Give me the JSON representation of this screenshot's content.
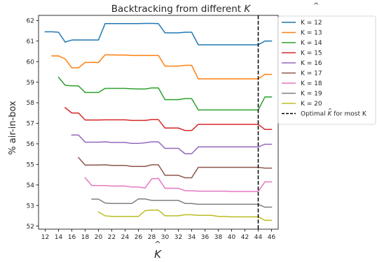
{
  "chart_data": {
    "type": "line",
    "title": "Backtracking from different K̂",
    "title_main": "Backtracking from different ",
    "title_var": "K",
    "xlabel": "K",
    "ylabel": "% air-in-box",
    "x_tick_labels": [
      12,
      14,
      16,
      18,
      20,
      22,
      24,
      26,
      28,
      30,
      32,
      34,
      36,
      38,
      40,
      42,
      44,
      46
    ],
    "y_tick_labels": [
      52,
      53,
      54,
      55,
      56,
      57,
      58,
      59,
      60,
      61,
      62
    ],
    "xlim": [
      11,
      47
    ],
    "ylim": [
      51.85,
      62.25
    ],
    "grid": false,
    "legend_placement": "outside-right",
    "series": [
      {
        "name": "K = 12",
        "color": "#1f77b4",
        "points": [
          [
            12,
            61.45
          ],
          [
            13,
            61.45
          ],
          [
            14,
            61.43
          ],
          [
            15,
            60.95
          ],
          [
            16,
            61.05
          ],
          [
            17,
            61.05
          ],
          [
            18,
            61.05
          ],
          [
            19,
            61.05
          ],
          [
            20,
            61.05
          ],
          [
            21,
            61.85
          ],
          [
            22,
            61.85
          ],
          [
            23,
            61.85
          ],
          [
            24,
            61.85
          ],
          [
            25,
            61.85
          ],
          [
            26,
            61.85
          ],
          [
            27,
            61.86
          ],
          [
            28,
            61.86
          ],
          [
            29,
            61.85
          ],
          [
            30,
            61.4
          ],
          [
            31,
            61.4
          ],
          [
            32,
            61.4
          ],
          [
            33,
            61.43
          ],
          [
            34,
            61.43
          ],
          [
            35,
            60.82
          ],
          [
            36,
            60.82
          ],
          [
            37,
            60.82
          ],
          [
            38,
            60.82
          ],
          [
            39,
            60.82
          ],
          [
            40,
            60.82
          ],
          [
            41,
            60.82
          ],
          [
            42,
            60.82
          ],
          [
            43,
            60.82
          ],
          [
            44,
            60.82
          ],
          [
            45,
            61.0
          ],
          [
            46,
            61.0
          ]
        ]
      },
      {
        "name": "K = 13",
        "color": "#ff7f0e",
        "points": [
          [
            13,
            60.28
          ],
          [
            14,
            60.28
          ],
          [
            15,
            60.13
          ],
          [
            16,
            59.7
          ],
          [
            17,
            59.7
          ],
          [
            18,
            59.96
          ],
          [
            19,
            59.96
          ],
          [
            20,
            59.96
          ],
          [
            21,
            60.33
          ],
          [
            22,
            60.33
          ],
          [
            23,
            60.32
          ],
          [
            24,
            60.32
          ],
          [
            25,
            60.3
          ],
          [
            26,
            60.3
          ],
          [
            27,
            60.3
          ],
          [
            28,
            60.3
          ],
          [
            29,
            60.3
          ],
          [
            30,
            59.78
          ],
          [
            31,
            59.78
          ],
          [
            32,
            59.78
          ],
          [
            33,
            59.82
          ],
          [
            34,
            59.82
          ],
          [
            35,
            59.16
          ],
          [
            36,
            59.16
          ],
          [
            37,
            59.16
          ],
          [
            38,
            59.16
          ],
          [
            39,
            59.16
          ],
          [
            40,
            59.16
          ],
          [
            41,
            59.16
          ],
          [
            42,
            59.16
          ],
          [
            43,
            59.16
          ],
          [
            44,
            59.16
          ],
          [
            45,
            59.38
          ],
          [
            46,
            59.38
          ]
        ]
      },
      {
        "name": "K = 14",
        "color": "#2ca02c",
        "points": [
          [
            14,
            59.24
          ],
          [
            15,
            58.85
          ],
          [
            16,
            58.82
          ],
          [
            17,
            58.82
          ],
          [
            18,
            58.5
          ],
          [
            19,
            58.5
          ],
          [
            20,
            58.5
          ],
          [
            21,
            58.7
          ],
          [
            22,
            58.7
          ],
          [
            23,
            58.7
          ],
          [
            24,
            58.7
          ],
          [
            25,
            58.68
          ],
          [
            26,
            58.67
          ],
          [
            27,
            58.67
          ],
          [
            28,
            58.72
          ],
          [
            29,
            58.72
          ],
          [
            30,
            58.15
          ],
          [
            31,
            58.15
          ],
          [
            32,
            58.15
          ],
          [
            33,
            58.2
          ],
          [
            34,
            58.2
          ],
          [
            35,
            57.65
          ],
          [
            36,
            57.65
          ],
          [
            37,
            57.65
          ],
          [
            38,
            57.65
          ],
          [
            39,
            57.65
          ],
          [
            40,
            57.65
          ],
          [
            41,
            57.65
          ],
          [
            42,
            57.65
          ],
          [
            43,
            57.65
          ],
          [
            44,
            57.65
          ],
          [
            45,
            58.28
          ],
          [
            46,
            58.28
          ]
        ]
      },
      {
        "name": "K = 15",
        "color": "#d62728",
        "points": [
          [
            15,
            57.76
          ],
          [
            16,
            57.5
          ],
          [
            17,
            57.5
          ],
          [
            18,
            57.16
          ],
          [
            19,
            57.16
          ],
          [
            20,
            57.16
          ],
          [
            21,
            57.17
          ],
          [
            22,
            57.17
          ],
          [
            23,
            57.17
          ],
          [
            24,
            57.17
          ],
          [
            25,
            57.14
          ],
          [
            26,
            57.14
          ],
          [
            27,
            57.14
          ],
          [
            28,
            57.18
          ],
          [
            29,
            57.18
          ],
          [
            30,
            56.77
          ],
          [
            31,
            56.77
          ],
          [
            32,
            56.77
          ],
          [
            33,
            56.65
          ],
          [
            34,
            56.65
          ],
          [
            35,
            56.95
          ],
          [
            36,
            56.95
          ],
          [
            37,
            56.95
          ],
          [
            38,
            56.95
          ],
          [
            39,
            56.95
          ],
          [
            40,
            56.95
          ],
          [
            41,
            56.95
          ],
          [
            42,
            56.95
          ],
          [
            43,
            56.95
          ],
          [
            44,
            56.95
          ],
          [
            45,
            56.7
          ],
          [
            46,
            56.7
          ]
        ]
      },
      {
        "name": "K = 16",
        "color": "#9467bd",
        "points": [
          [
            16,
            56.43
          ],
          [
            17,
            56.43
          ],
          [
            18,
            56.08
          ],
          [
            19,
            56.08
          ],
          [
            20,
            56.08
          ],
          [
            21,
            56.1
          ],
          [
            22,
            56.07
          ],
          [
            23,
            56.07
          ],
          [
            24,
            56.07
          ],
          [
            25,
            56.02
          ],
          [
            26,
            56.02
          ],
          [
            27,
            56.05
          ],
          [
            28,
            56.1
          ],
          [
            29,
            56.1
          ],
          [
            30,
            55.78
          ],
          [
            31,
            55.78
          ],
          [
            32,
            55.78
          ],
          [
            33,
            55.52
          ],
          [
            34,
            55.52
          ],
          [
            35,
            55.85
          ],
          [
            36,
            55.85
          ],
          [
            37,
            55.85
          ],
          [
            38,
            55.85
          ],
          [
            39,
            55.85
          ],
          [
            40,
            55.85
          ],
          [
            41,
            55.85
          ],
          [
            42,
            55.85
          ],
          [
            43,
            55.85
          ],
          [
            44,
            55.85
          ],
          [
            45,
            55.98
          ],
          [
            46,
            55.98
          ]
        ]
      },
      {
        "name": "K = 17",
        "color": "#8c564b",
        "points": [
          [
            17,
            55.33
          ],
          [
            18,
            54.97
          ],
          [
            19,
            54.97
          ],
          [
            20,
            54.97
          ],
          [
            21,
            54.98
          ],
          [
            22,
            54.95
          ],
          [
            23,
            54.95
          ],
          [
            24,
            54.95
          ],
          [
            25,
            54.9
          ],
          [
            26,
            54.9
          ],
          [
            27,
            54.9
          ],
          [
            28,
            54.98
          ],
          [
            29,
            54.98
          ],
          [
            30,
            54.47
          ],
          [
            31,
            54.47
          ],
          [
            32,
            54.47
          ],
          [
            33,
            54.35
          ],
          [
            34,
            54.35
          ],
          [
            35,
            54.86
          ],
          [
            36,
            54.86
          ],
          [
            37,
            54.86
          ],
          [
            38,
            54.86
          ],
          [
            39,
            54.86
          ],
          [
            40,
            54.86
          ],
          [
            41,
            54.86
          ],
          [
            42,
            54.86
          ],
          [
            43,
            54.86
          ],
          [
            44,
            54.86
          ],
          [
            45,
            54.82
          ],
          [
            46,
            54.82
          ]
        ]
      },
      {
        "name": "K = 18",
        "color": "#e377c2",
        "points": [
          [
            18,
            54.35
          ],
          [
            19,
            53.97
          ],
          [
            20,
            53.97
          ],
          [
            21,
            53.97
          ],
          [
            22,
            53.95
          ],
          [
            23,
            53.95
          ],
          [
            24,
            53.95
          ],
          [
            25,
            53.9
          ],
          [
            26,
            53.9
          ],
          [
            27,
            53.85
          ],
          [
            28,
            54.3
          ],
          [
            29,
            54.32
          ],
          [
            30,
            53.84
          ],
          [
            31,
            53.84
          ],
          [
            32,
            53.84
          ],
          [
            33,
            53.72
          ],
          [
            34,
            53.72
          ],
          [
            35,
            53.7
          ],
          [
            36,
            53.7
          ],
          [
            37,
            53.7
          ],
          [
            38,
            53.7
          ],
          [
            39,
            53.7
          ],
          [
            40,
            53.68
          ],
          [
            41,
            53.68
          ],
          [
            42,
            53.68
          ],
          [
            43,
            53.68
          ],
          [
            44,
            53.68
          ],
          [
            45,
            54.15
          ],
          [
            46,
            54.15
          ]
        ]
      },
      {
        "name": "K = 19",
        "color": "#7f7f7f",
        "points": [
          [
            19,
            53.31
          ],
          [
            20,
            53.31
          ],
          [
            21,
            53.12
          ],
          [
            22,
            53.1
          ],
          [
            23,
            53.1
          ],
          [
            24,
            53.1
          ],
          [
            25,
            53.1
          ],
          [
            26,
            53.32
          ],
          [
            27,
            53.32
          ],
          [
            28,
            53.25
          ],
          [
            29,
            53.25
          ],
          [
            30,
            53.25
          ],
          [
            31,
            53.25
          ],
          [
            32,
            53.25
          ],
          [
            33,
            53.1
          ],
          [
            34,
            53.1
          ],
          [
            35,
            53.06
          ],
          [
            36,
            53.06
          ],
          [
            37,
            53.06
          ],
          [
            38,
            53.06
          ],
          [
            39,
            53.06
          ],
          [
            40,
            53.06
          ],
          [
            41,
            53.06
          ],
          [
            42,
            53.06
          ],
          [
            43,
            53.06
          ],
          [
            44,
            53.06
          ],
          [
            45,
            52.92
          ],
          [
            46,
            52.92
          ]
        ]
      },
      {
        "name": "K = 20",
        "color": "#bcbd22",
        "points": [
          [
            20,
            52.68
          ],
          [
            21,
            52.5
          ],
          [
            22,
            52.47
          ],
          [
            23,
            52.47
          ],
          [
            24,
            52.47
          ],
          [
            25,
            52.47
          ],
          [
            26,
            52.47
          ],
          [
            27,
            52.75
          ],
          [
            28,
            52.78
          ],
          [
            29,
            52.78
          ],
          [
            30,
            52.5
          ],
          [
            31,
            52.5
          ],
          [
            32,
            52.5
          ],
          [
            33,
            52.55
          ],
          [
            34,
            52.55
          ],
          [
            35,
            52.52
          ],
          [
            36,
            52.52
          ],
          [
            37,
            52.52
          ],
          [
            38,
            52.47
          ],
          [
            39,
            52.47
          ],
          [
            40,
            52.45
          ],
          [
            41,
            52.45
          ],
          [
            42,
            52.45
          ],
          [
            43,
            52.45
          ],
          [
            44,
            52.45
          ],
          [
            45,
            52.28
          ],
          [
            46,
            52.28
          ]
        ]
      }
    ],
    "vline": {
      "x": 44,
      "name": "Optimal K̂ for most K",
      "label_main": "Optimal ",
      "label_var": "K",
      "label_tail": " for most K",
      "color": "#000000"
    }
  }
}
